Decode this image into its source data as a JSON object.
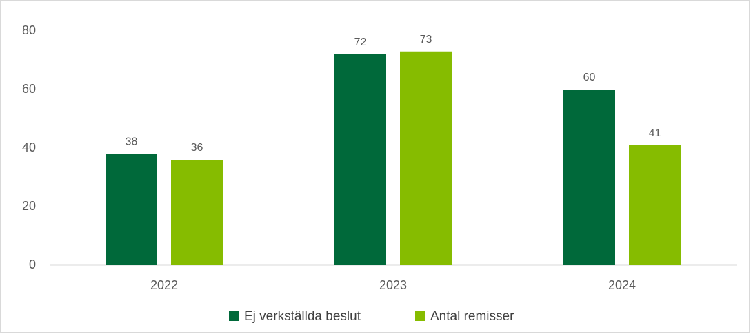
{
  "chart_data": {
    "type": "bar",
    "categories": [
      "2022",
      "2023",
      "2024"
    ],
    "series": [
      {
        "name": "Ej verkställda beslut",
        "color": "#00693a",
        "values": [
          38,
          72,
          60
        ]
      },
      {
        "name": "Antal remisser",
        "color": "#86bc00",
        "values": [
          36,
          73,
          41
        ]
      }
    ],
    "ylim": [
      0,
      80
    ],
    "yticks": [
      0,
      20,
      40,
      60,
      80
    ],
    "grid": false,
    "legend": "bottom"
  }
}
